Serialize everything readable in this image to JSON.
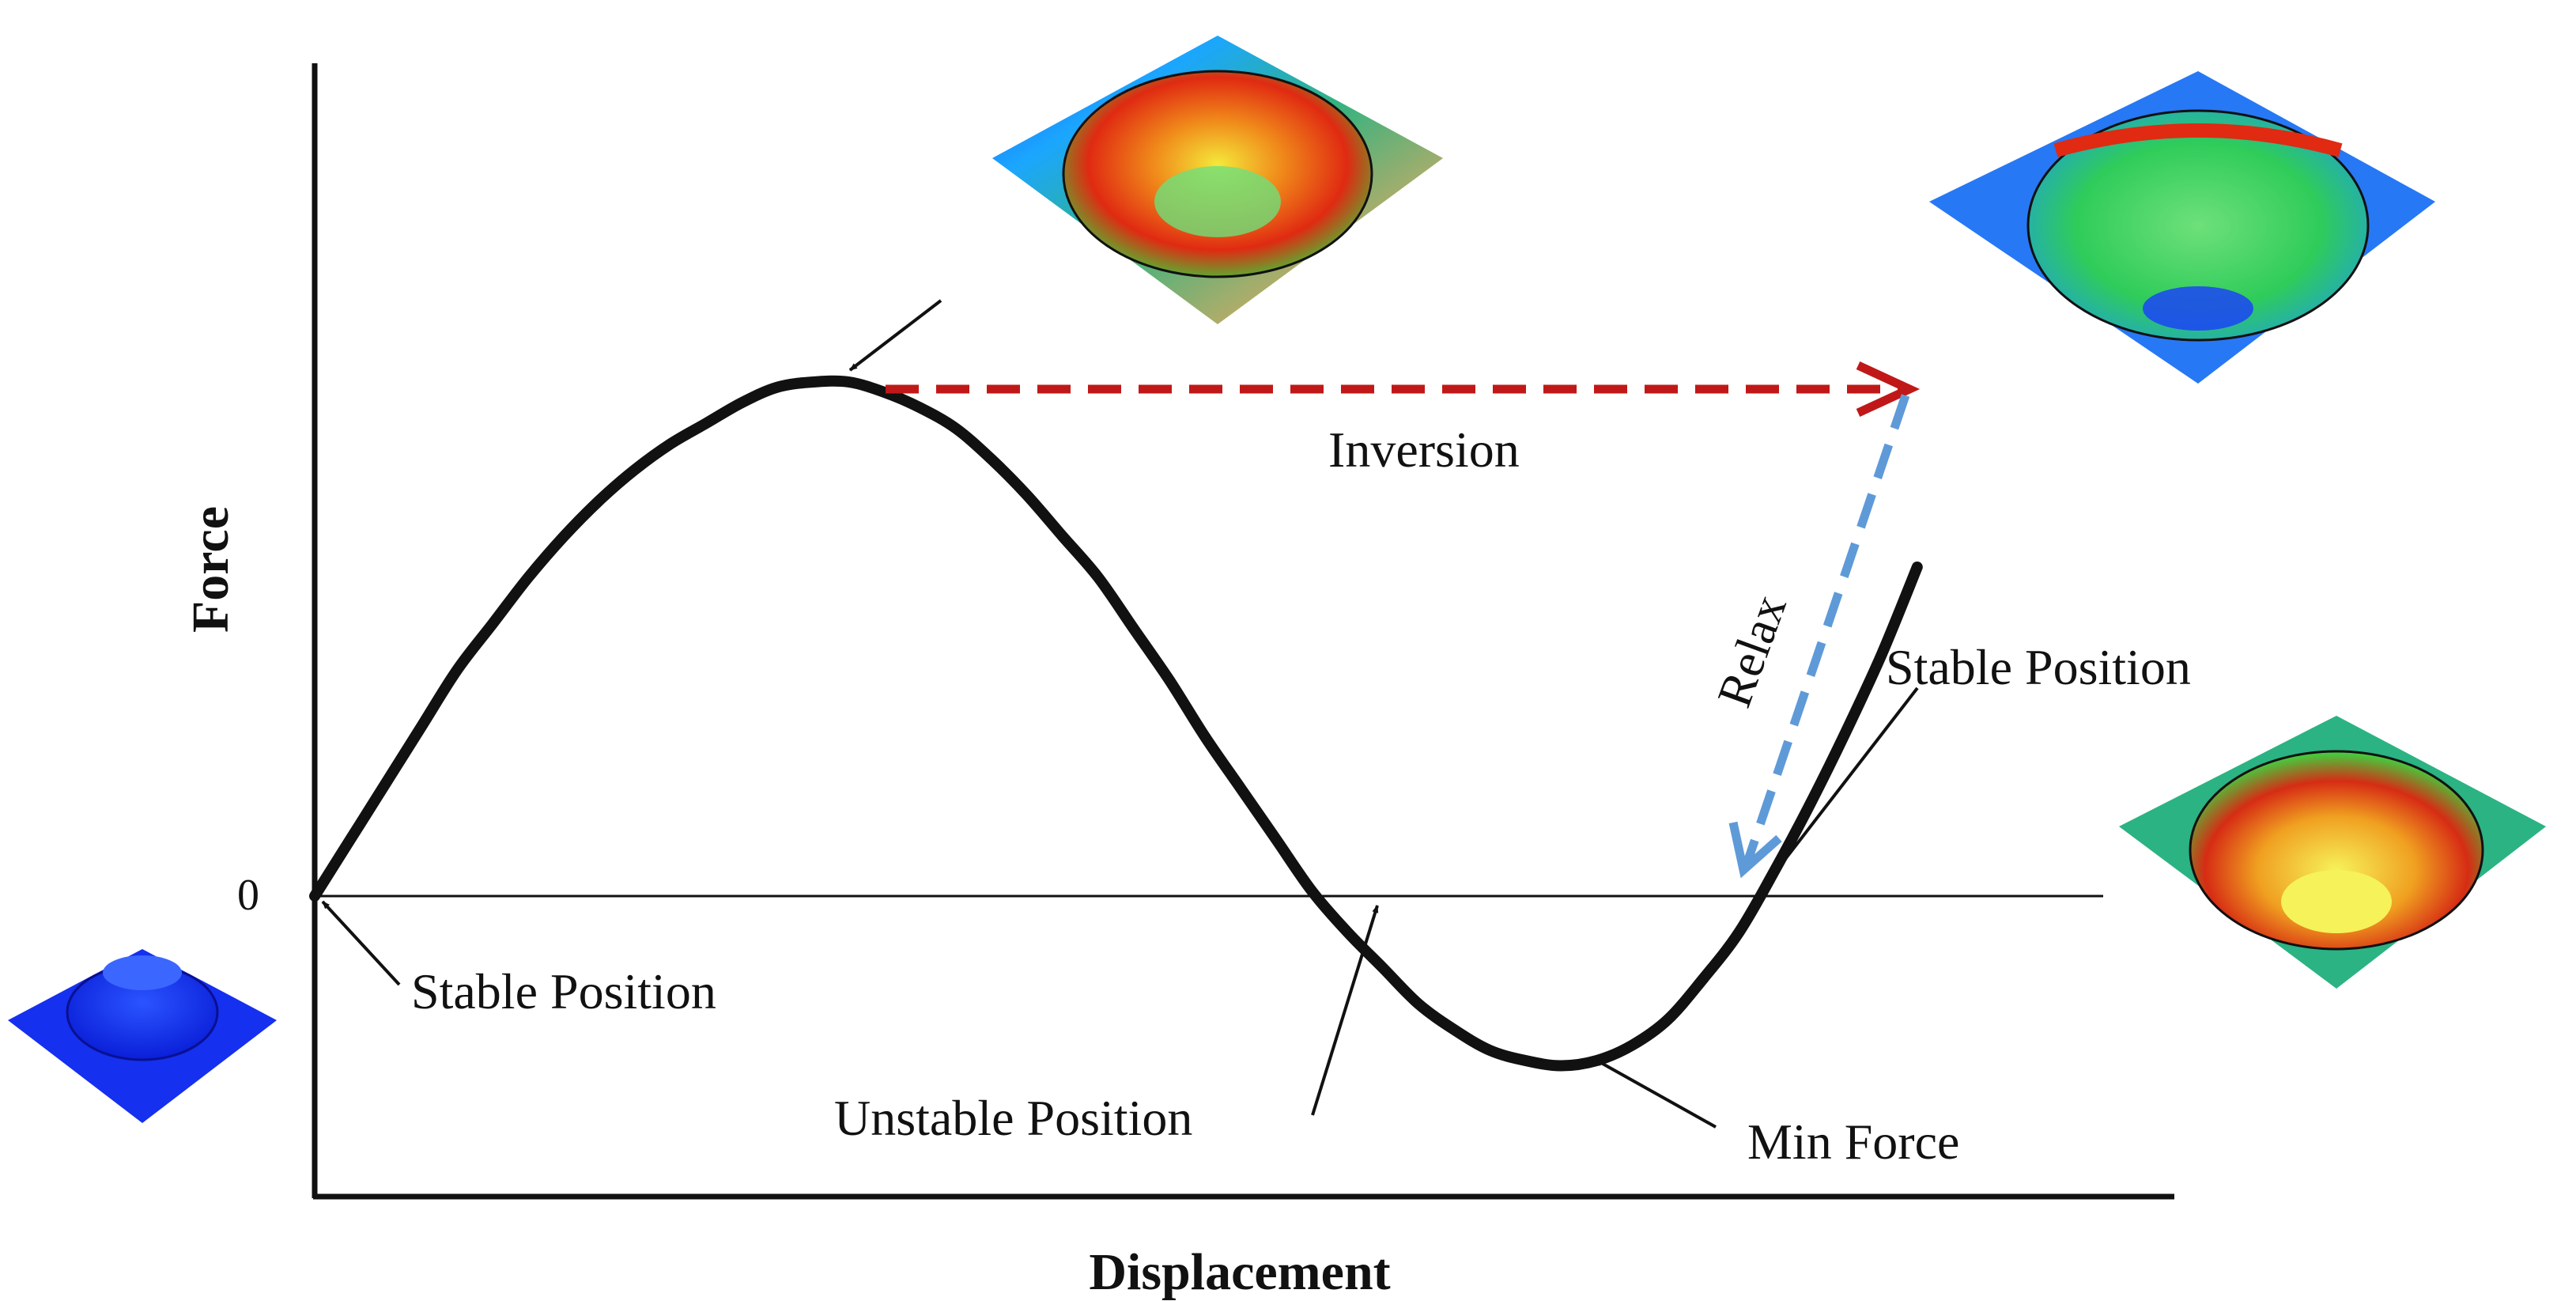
{
  "chart_data": {
    "type": "line",
    "xlabel": "Displacement",
    "ylabel": "Force",
    "y_tick_labels": [
      "0"
    ],
    "ylim": [
      -0.35,
      1.0
    ],
    "xlim": [
      0,
      1.0
    ],
    "grid": false,
    "series": [
      {
        "x": [
          0,
          0.02,
          0.04,
          0.06,
          0.08,
          0.1,
          0.12,
          0.14,
          0.16,
          0.18,
          0.2,
          0.22,
          0.24,
          0.26,
          0.28,
          0.3,
          0.32,
          0.34,
          0.36,
          0.38,
          0.4,
          0.42,
          0.44,
          0.46,
          0.48,
          0.5,
          0.52,
          0.54,
          0.56,
          0.58,
          0.6,
          0.62,
          0.64,
          0.66,
          0.68,
          0.7,
          0.72,
          0.74,
          0.76,
          0.78,
          0.8,
          0.82,
          0.84,
          0.86,
          0.88,
          0.9
        ],
        "y": [
          0,
          0.11,
          0.22,
          0.33,
          0.44,
          0.53,
          0.62,
          0.7,
          0.77,
          0.83,
          0.88,
          0.92,
          0.96,
          0.99,
          1.0,
          1.0,
          0.98,
          0.95,
          0.91,
          0.85,
          0.78,
          0.7,
          0.62,
          0.52,
          0.42,
          0.31,
          0.21,
          0.11,
          0.01,
          -0.07,
          -0.14,
          -0.21,
          -0.26,
          -0.3,
          -0.32,
          -0.33,
          -0.32,
          -0.29,
          -0.24,
          -0.16,
          -0.07,
          0.05,
          0.18,
          0.32,
          0.47,
          0.64
        ]
      }
    ],
    "annotations": {
      "inversion": "Inversion",
      "relax": "Relax",
      "stable_left": "Stable Position",
      "unstable": "Unstable Position",
      "min_force": "Min Force",
      "stable_right": "Stable Position"
    }
  }
}
